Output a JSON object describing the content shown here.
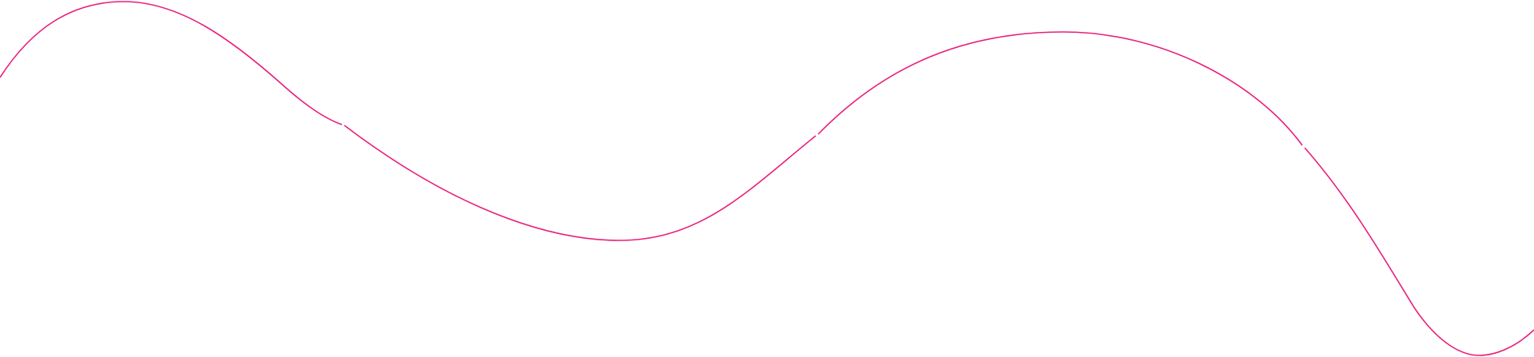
{
  "decoration": {
    "type": "wave-line",
    "stroke_color": "#e91e7a",
    "background_color": "#ffffff"
  }
}
